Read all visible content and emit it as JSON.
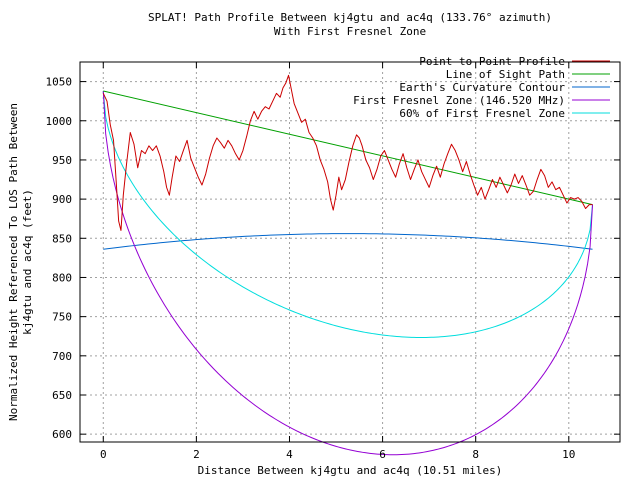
{
  "chart_data": {
    "type": "line",
    "title": "SPLAT! Path Profile Between kj4gtu and ac4q (133.76° azimuth)",
    "subtitle": "With First Fresnel Zone",
    "xlabel": "Distance Between kj4gtu and ac4q (10.51 miles)",
    "ylabel_line1": "Normalized Height Referenced To LOS Path Between",
    "ylabel_line2": "kj4gtu and ac4q (feet)",
    "xlim": [
      -0.5,
      11.1
    ],
    "ylim": [
      590,
      1075
    ],
    "x_ticks": [
      0,
      2,
      4,
      6,
      8,
      10
    ],
    "y_ticks": [
      600,
      650,
      700,
      750,
      800,
      850,
      900,
      950,
      1000,
      1050
    ],
    "grid": true,
    "legend_position": "top-right",
    "series": [
      {
        "name": "Point-to-Point Profile",
        "color": "#cc0000",
        "points": [
          [
            0.0,
            1035
          ],
          [
            0.08,
            1025
          ],
          [
            0.15,
            995
          ],
          [
            0.22,
            975
          ],
          [
            0.28,
            920
          ],
          [
            0.33,
            872
          ],
          [
            0.38,
            860
          ],
          [
            0.43,
            905
          ],
          [
            0.5,
            945
          ],
          [
            0.58,
            985
          ],
          [
            0.66,
            970
          ],
          [
            0.74,
            940
          ],
          [
            0.82,
            962
          ],
          [
            0.9,
            958
          ],
          [
            0.98,
            968
          ],
          [
            1.06,
            962
          ],
          [
            1.14,
            968
          ],
          [
            1.22,
            955
          ],
          [
            1.3,
            935
          ],
          [
            1.36,
            915
          ],
          [
            1.42,
            905
          ],
          [
            1.48,
            928
          ],
          [
            1.56,
            955
          ],
          [
            1.64,
            948
          ],
          [
            1.72,
            962
          ],
          [
            1.8,
            975
          ],
          [
            1.88,
            952
          ],
          [
            1.96,
            940
          ],
          [
            2.04,
            928
          ],
          [
            2.12,
            918
          ],
          [
            2.2,
            932
          ],
          [
            2.28,
            952
          ],
          [
            2.36,
            968
          ],
          [
            2.44,
            978
          ],
          [
            2.52,
            972
          ],
          [
            2.6,
            965
          ],
          [
            2.68,
            975
          ],
          [
            2.76,
            968
          ],
          [
            2.84,
            958
          ],
          [
            2.92,
            950
          ],
          [
            3.0,
            962
          ],
          [
            3.08,
            980
          ],
          [
            3.16,
            1000
          ],
          [
            3.24,
            1012
          ],
          [
            3.32,
            1002
          ],
          [
            3.4,
            1012
          ],
          [
            3.48,
            1018
          ],
          [
            3.56,
            1015
          ],
          [
            3.64,
            1025
          ],
          [
            3.72,
            1035
          ],
          [
            3.8,
            1030
          ],
          [
            3.86,
            1042
          ],
          [
            3.92,
            1048
          ],
          [
            3.98,
            1058
          ],
          [
            4.04,
            1040
          ],
          [
            4.1,
            1022
          ],
          [
            4.18,
            1010
          ],
          [
            4.26,
            998
          ],
          [
            4.34,
            1002
          ],
          [
            4.42,
            985
          ],
          [
            4.5,
            978
          ],
          [
            4.58,
            968
          ],
          [
            4.66,
            950
          ],
          [
            4.74,
            938
          ],
          [
            4.82,
            922
          ],
          [
            4.88,
            900
          ],
          [
            4.94,
            886
          ],
          [
            5.0,
            905
          ],
          [
            5.06,
            928
          ],
          [
            5.12,
            912
          ],
          [
            5.2,
            925
          ],
          [
            5.28,
            948
          ],
          [
            5.36,
            968
          ],
          [
            5.44,
            982
          ],
          [
            5.5,
            978
          ],
          [
            5.56,
            968
          ],
          [
            5.64,
            950
          ],
          [
            5.72,
            940
          ],
          [
            5.8,
            925
          ],
          [
            5.88,
            938
          ],
          [
            5.96,
            955
          ],
          [
            6.04,
            962
          ],
          [
            6.12,
            950
          ],
          [
            6.2,
            938
          ],
          [
            6.28,
            928
          ],
          [
            6.36,
            945
          ],
          [
            6.44,
            958
          ],
          [
            6.52,
            940
          ],
          [
            6.6,
            925
          ],
          [
            6.68,
            938
          ],
          [
            6.76,
            950
          ],
          [
            6.84,
            935
          ],
          [
            6.92,
            925
          ],
          [
            7.0,
            915
          ],
          [
            7.08,
            930
          ],
          [
            7.16,
            942
          ],
          [
            7.24,
            928
          ],
          [
            7.32,
            945
          ],
          [
            7.4,
            958
          ],
          [
            7.48,
            970
          ],
          [
            7.56,
            962
          ],
          [
            7.64,
            950
          ],
          [
            7.72,
            935
          ],
          [
            7.8,
            948
          ],
          [
            7.88,
            932
          ],
          [
            7.96,
            918
          ],
          [
            8.04,
            905
          ],
          [
            8.12,
            915
          ],
          [
            8.2,
            900
          ],
          [
            8.28,
            912
          ],
          [
            8.36,
            925
          ],
          [
            8.44,
            915
          ],
          [
            8.52,
            928
          ],
          [
            8.6,
            918
          ],
          [
            8.68,
            908
          ],
          [
            8.76,
            918
          ],
          [
            8.84,
            932
          ],
          [
            8.92,
            920
          ],
          [
            9.0,
            930
          ],
          [
            9.08,
            918
          ],
          [
            9.16,
            905
          ],
          [
            9.24,
            910
          ],
          [
            9.32,
            925
          ],
          [
            9.4,
            938
          ],
          [
            9.48,
            930
          ],
          [
            9.56,
            915
          ],
          [
            9.64,
            922
          ],
          [
            9.72,
            912
          ],
          [
            9.8,
            915
          ],
          [
            9.88,
            905
          ],
          [
            9.96,
            895
          ],
          [
            10.04,
            902
          ],
          [
            10.12,
            900
          ],
          [
            10.2,
            902
          ],
          [
            10.28,
            897
          ],
          [
            10.36,
            888
          ],
          [
            10.44,
            893
          ],
          [
            10.51,
            893
          ]
        ]
      },
      {
        "name": "Line of Sight Path",
        "color": "#00a000",
        "points": [
          [
            0.0,
            1038
          ],
          [
            10.51,
            893
          ]
        ]
      },
      {
        "name": "Earth's Curvature Contour",
        "color": "#0066cc",
        "curve": "earth",
        "endpoint_height": 836,
        "center_height": 856
      },
      {
        "name": "First Fresnel Zone (146.520 MHz)",
        "color": "#9400d3",
        "curve": "fresnel",
        "fraction": 1.0,
        "max_clearance": 385
      },
      {
        "name": "60% of First Fresnel Zone",
        "color": "#00dddd",
        "curve": "fresnel",
        "fraction": 0.6,
        "max_clearance": 385
      }
    ]
  }
}
